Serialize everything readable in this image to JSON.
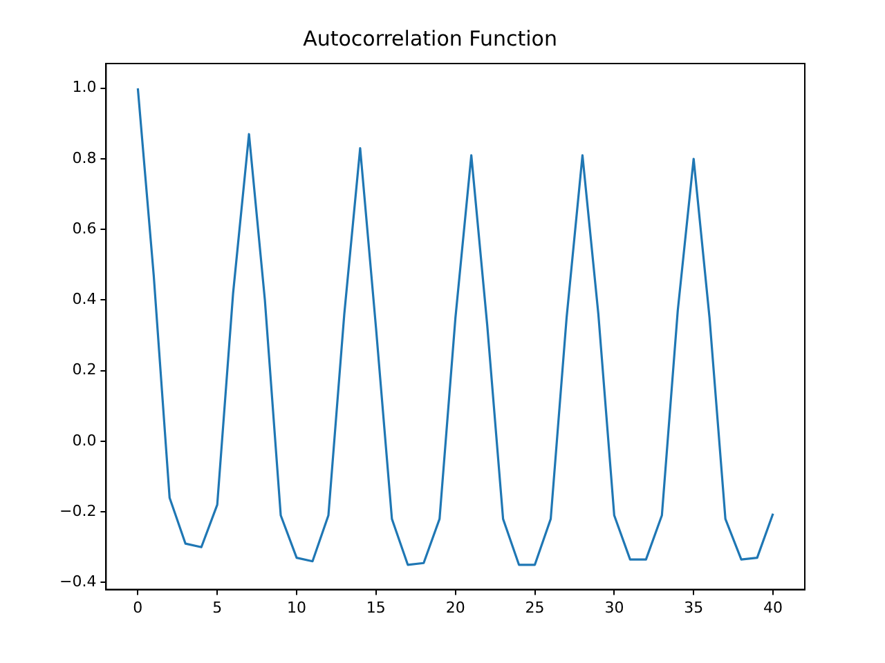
{
  "chart_data": {
    "type": "line",
    "title": "Autocorrelation Function",
    "x": [
      0,
      1,
      2,
      3,
      4,
      5,
      6,
      7,
      8,
      9,
      10,
      11,
      12,
      13,
      14,
      15,
      16,
      17,
      18,
      19,
      20,
      21,
      22,
      23,
      24,
      25,
      26,
      27,
      28,
      29,
      30,
      31,
      32,
      33,
      34,
      35,
      36,
      37,
      38,
      39,
      40
    ],
    "series": [
      {
        "color": "#1f77b4",
        "values": [
          1.0,
          0.47,
          -0.16,
          -0.29,
          -0.3,
          -0.18,
          0.42,
          0.87,
          0.4,
          -0.21,
          -0.33,
          -0.34,
          -0.21,
          0.36,
          0.83,
          0.32,
          -0.22,
          -0.35,
          -0.345,
          -0.22,
          0.35,
          0.81,
          0.33,
          -0.22,
          -0.35,
          -0.35,
          -0.22,
          0.35,
          0.81,
          0.36,
          -0.21,
          -0.335,
          -0.335,
          -0.21,
          0.37,
          0.8,
          0.35,
          -0.22,
          -0.335,
          -0.33,
          -0.205
        ]
      }
    ],
    "xlim": [
      -2,
      42
    ],
    "xticks": [
      0,
      5,
      10,
      15,
      20,
      25,
      30,
      35,
      40
    ],
    "ylim": [
      -0.42,
      1.07
    ],
    "yticks": [
      {
        "value": -0.4,
        "label": "−0.4"
      },
      {
        "value": -0.2,
        "label": "−0.2"
      },
      {
        "value": 0,
        "label": "0.0"
      },
      {
        "value": 0.2,
        "label": "0.2"
      },
      {
        "value": 0.4,
        "label": "0.4"
      },
      {
        "value": 0.6,
        "label": "0.6"
      },
      {
        "value": 0.8,
        "label": "0.8"
      },
      {
        "value": 1,
        "label": "1.0"
      }
    ],
    "grid": false,
    "legend": false,
    "marker": "none",
    "line_style": "solid"
  }
}
